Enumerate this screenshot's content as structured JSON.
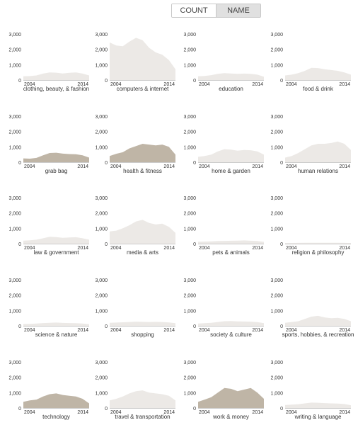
{
  "toggle": {
    "count_label": "COUNT",
    "name_label": "NAME",
    "active": "name"
  },
  "colors": {
    "light": "#ece9e6",
    "medium": "#d8d2cb",
    "dark": "#bfb5a6",
    "axis": "#999999",
    "text": "#333333"
  },
  "chart_data": {
    "type": "area",
    "x": [
      2004,
      2005,
      2006,
      2007,
      2008,
      2009,
      2010,
      2011,
      2012,
      2013,
      2014
    ],
    "ylim": [
      0,
      3000
    ],
    "yticks": [
      0,
      1000,
      2000,
      3000
    ],
    "ytick_labels": [
      "0",
      "1,000",
      "2,000",
      "3,000"
    ],
    "xtick_labels": [
      "2004",
      "2014"
    ],
    "series": [
      {
        "name": "clothing, beauty, & fashion",
        "shade": "light",
        "values": [
          250,
          260,
          300,
          420,
          500,
          480,
          430,
          470,
          500,
          420,
          300
        ]
      },
      {
        "name": "computers & internet",
        "shade": "light",
        "values": [
          2450,
          2250,
          2200,
          2500,
          2750,
          2600,
          2100,
          1800,
          1650,
          1300,
          700
        ]
      },
      {
        "name": "education",
        "shade": "light",
        "values": [
          250,
          270,
          320,
          400,
          450,
          430,
          400,
          420,
          400,
          350,
          220
        ]
      },
      {
        "name": "food & drink",
        "shade": "light",
        "values": [
          300,
          350,
          450,
          600,
          800,
          780,
          700,
          650,
          600,
          500,
          350
        ]
      },
      {
        "name": "grab bag",
        "shade": "dark",
        "values": [
          250,
          230,
          280,
          450,
          600,
          620,
          560,
          530,
          520,
          450,
          300
        ]
      },
      {
        "name": "health & fitness",
        "shade": "dark",
        "values": [
          400,
          550,
          650,
          900,
          1050,
          1200,
          1150,
          1100,
          1150,
          1000,
          500
        ]
      },
      {
        "name": "home & garden",
        "shade": "light",
        "values": [
          350,
          400,
          500,
          700,
          850,
          820,
          750,
          800,
          780,
          700,
          500
        ]
      },
      {
        "name": "human relations",
        "shade": "light",
        "values": [
          300,
          400,
          600,
          850,
          1100,
          1200,
          1200,
          1250,
          1350,
          1200,
          800
        ]
      },
      {
        "name": "law & government",
        "shade": "light",
        "values": [
          200,
          220,
          260,
          350,
          450,
          430,
          380,
          400,
          420,
          350,
          260
        ]
      },
      {
        "name": "media & arts",
        "shade": "light",
        "values": [
          800,
          850,
          1000,
          1200,
          1450,
          1550,
          1350,
          1250,
          1300,
          1100,
          700
        ]
      },
      {
        "name": "pets & animals",
        "shade": "light",
        "values": [
          130,
          140,
          150,
          170,
          180,
          190,
          200,
          210,
          190,
          170,
          120
        ]
      },
      {
        "name": "religion & philosophy",
        "shade": "light",
        "values": [
          40,
          45,
          50,
          55,
          60,
          60,
          55,
          60,
          55,
          50,
          40
        ]
      },
      {
        "name": "science & nature",
        "shade": "light",
        "values": [
          120,
          130,
          150,
          180,
          200,
          210,
          190,
          180,
          170,
          150,
          110
        ]
      },
      {
        "name": "shopping",
        "shade": "light",
        "values": [
          200,
          210,
          230,
          250,
          270,
          260,
          250,
          260,
          250,
          220,
          170
        ]
      },
      {
        "name": "society & culture",
        "shade": "light",
        "values": [
          150,
          170,
          200,
          250,
          300,
          310,
          290,
          280,
          270,
          240,
          170
        ]
      },
      {
        "name": "sports, hobbies, & recreation",
        "shade": "light",
        "values": [
          200,
          250,
          300,
          450,
          600,
          650,
          550,
          500,
          520,
          450,
          300
        ]
      },
      {
        "name": "technology",
        "shade": "dark",
        "values": [
          400,
          500,
          550,
          750,
          900,
          950,
          850,
          800,
          750,
          600,
          300
        ]
      },
      {
        "name": "travel & transportation",
        "shade": "light",
        "values": [
          500,
          600,
          750,
          950,
          1100,
          1150,
          1000,
          950,
          900,
          800,
          500
        ]
      },
      {
        "name": "work & money",
        "shade": "dark",
        "values": [
          400,
          550,
          700,
          1000,
          1300,
          1250,
          1100,
          1200,
          1300,
          1000,
          600
        ]
      },
      {
        "name": "writing & language",
        "shade": "light",
        "values": [
          200,
          220,
          250,
          300,
          350,
          340,
          320,
          300,
          290,
          260,
          180
        ]
      }
    ]
  }
}
